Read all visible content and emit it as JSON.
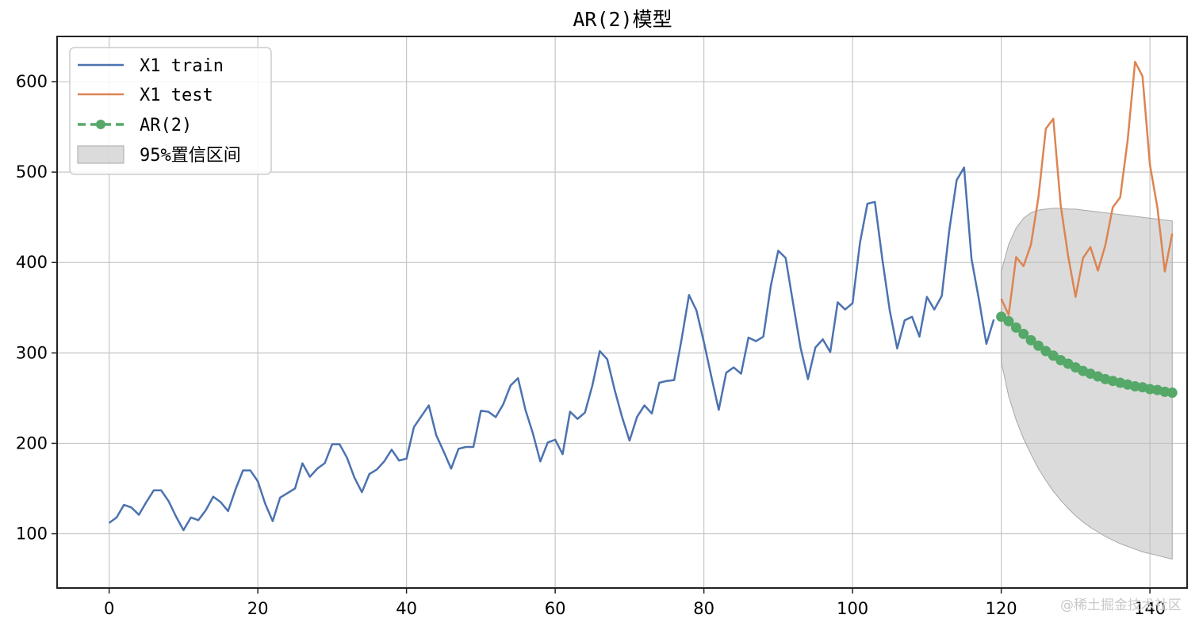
{
  "chart_data": {
    "type": "line",
    "title": "AR(2)模型",
    "xlabel": "",
    "ylabel": "",
    "xlim": [
      -7,
      145
    ],
    "ylim": [
      40,
      650
    ],
    "x_ticks": [
      0,
      20,
      40,
      60,
      80,
      100,
      120,
      140
    ],
    "y_ticks": [
      100,
      200,
      300,
      400,
      500,
      600
    ],
    "grid": true,
    "legend_position": "upper-left",
    "series": [
      {
        "name": "X1 train",
        "color": "#4c72b0",
        "style": "solid",
        "x_start": 0,
        "values": [
          112,
          118,
          132,
          129,
          121,
          135,
          148,
          148,
          136,
          119,
          104,
          118,
          115,
          126,
          141,
          135,
          125,
          149,
          170,
          170,
          158,
          133,
          114,
          140,
          145,
          150,
          178,
          163,
          172,
          178,
          199,
          199,
          184,
          162,
          146,
          166,
          171,
          180,
          193,
          181,
          183,
          218,
          230,
          242,
          209,
          191,
          172,
          194,
          196,
          196,
          236,
          235,
          229,
          243,
          264,
          272,
          237,
          211,
          180,
          201,
          204,
          188,
          235,
          227,
          234,
          264,
          302,
          293,
          259,
          229,
          203,
          229,
          242,
          233,
          267,
          269,
          270,
          315,
          364,
          347,
          312,
          274,
          237,
          278,
          284,
          277,
          317,
          313,
          318,
          374,
          413,
          405,
          355,
          306,
          271,
          306,
          315,
          301,
          356,
          348,
          355,
          422,
          465,
          467,
          404,
          347,
          305,
          336,
          340,
          318,
          362,
          348,
          363,
          435,
          491,
          505,
          404,
          359,
          310,
          337
        ]
      },
      {
        "name": "X1 test",
        "color": "#dd8452",
        "style": "solid",
        "x_start": 120,
        "values": [
          360,
          342,
          406,
          396,
          420,
          472,
          548,
          559,
          463,
          407,
          362,
          405,
          417,
          391,
          419,
          461,
          472,
          535,
          622,
          606,
          508,
          461,
          390,
          432
        ]
      },
      {
        "name": "AR(2)",
        "color": "#55a868",
        "style": "dashed-markers",
        "x_start": 120,
        "values": [
          340,
          335,
          328,
          321,
          314,
          308,
          302,
          297,
          292,
          288,
          284,
          280,
          277,
          274,
          271,
          269,
          267,
          265,
          263,
          262,
          260,
          259,
          257,
          256
        ]
      }
    ],
    "band": {
      "name": "95%置信区间",
      "color": "#bdbdbd",
      "x_start": 120,
      "upper": [
        390,
        420,
        438,
        449,
        455,
        458,
        459,
        460,
        460,
        459,
        459,
        458,
        457,
        456,
        455,
        454,
        453,
        452,
        451,
        450,
        449,
        448,
        447,
        446
      ],
      "lower": [
        290,
        252,
        226,
        205,
        188,
        172,
        159,
        147,
        137,
        128,
        120,
        113,
        107,
        102,
        97,
        93,
        89,
        86,
        83,
        80,
        78,
        76,
        74,
        72
      ]
    }
  },
  "watermark": "@稀土掘金技术社区"
}
